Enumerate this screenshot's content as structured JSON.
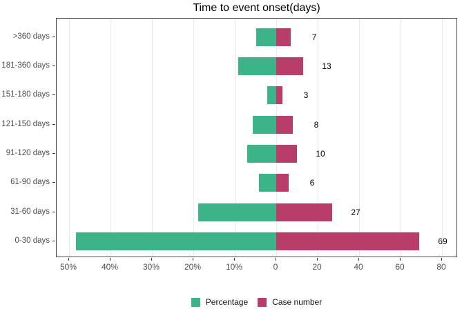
{
  "title": "Time to event onset(days)",
  "colors": {
    "percentage": "#3CB487",
    "case_number": "#B83D6B",
    "grid": "#E9E9E9",
    "panel_border": "#4A4A4A",
    "tick": "#333333",
    "axis_text": "#4D4D4D",
    "bar_label_text": "#000000"
  },
  "legend": {
    "items": [
      {
        "label": "Percentage",
        "key": "percentage"
      },
      {
        "label": "Case number",
        "key": "case_number"
      }
    ]
  },
  "chart_data": {
    "type": "bar",
    "variant": "diverging-horizontal",
    "title": "Time to event onset(days)",
    "categories": [
      ">360 days",
      "181-360 days",
      "151-180 days",
      "121-150 days",
      "91-120 days",
      "61-90 days",
      "31-60 days",
      "0-30 days"
    ],
    "series": [
      {
        "name": "Percentage",
        "axis": "left",
        "unit": "%",
        "values": [
          4.9,
          9.1,
          2.1,
          5.6,
          7.0,
          4.2,
          18.9,
          48.3
        ]
      },
      {
        "name": "Case number",
        "axis": "right",
        "unit": "cases",
        "values": [
          7,
          13,
          3,
          8,
          10,
          6,
          27,
          69
        ]
      }
    ],
    "bar_labels": [
      "7",
      "13",
      "3",
      "8",
      "10",
      "6",
      "27",
      "69"
    ],
    "x_axis": {
      "ticks": [
        {
          "label": "50%",
          "side": "percent",
          "value": 50
        },
        {
          "label": "40%",
          "side": "percent",
          "value": 40
        },
        {
          "label": "30%",
          "side": "percent",
          "value": 30
        },
        {
          "label": "20%",
          "side": "percent",
          "value": 20
        },
        {
          "label": "10%",
          "side": "percent",
          "value": 10
        },
        {
          "label": "0",
          "side": "zero",
          "value": 0
        },
        {
          "label": "20",
          "side": "count",
          "value": 20
        },
        {
          "label": "40",
          "side": "count",
          "value": 40
        },
        {
          "label": "60",
          "side": "count",
          "value": 60
        },
        {
          "label": "80",
          "side": "count",
          "value": 80
        }
      ]
    },
    "grid": "vertical-major",
    "legend_position": "bottom"
  }
}
